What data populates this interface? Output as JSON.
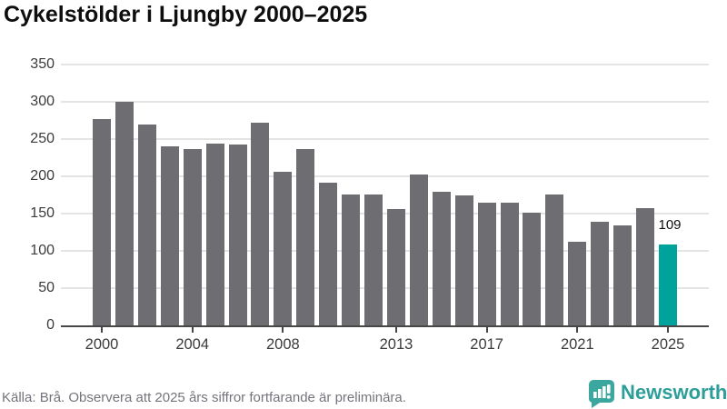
{
  "title": "Cykelstölder i Ljungby 2000–2025",
  "footer": {
    "source_note": "Källa: Brå. Observera att 2025 års siffror fortfarande är preliminära.",
    "brand": "Newsworthy"
  },
  "colors": {
    "bar": "#6d6d72",
    "highlight": "#00a39b",
    "gridline": "#e4e4e4",
    "axis": "#474747",
    "brand_teal": "#3ba79f"
  },
  "chart_data": {
    "type": "bar",
    "title": "Cykelstölder i Ljungby 2000–2025",
    "categories": [
      2000,
      2001,
      2002,
      2003,
      2004,
      2005,
      2006,
      2007,
      2008,
      2009,
      2010,
      2011,
      2012,
      2013,
      2014,
      2015,
      2016,
      2017,
      2018,
      2019,
      2020,
      2021,
      2022,
      2023,
      2024,
      2025
    ],
    "values": [
      277,
      300,
      270,
      240,
      237,
      244,
      243,
      272,
      206,
      236,
      191,
      176,
      176,
      156,
      202,
      179,
      174,
      165,
      165,
      151,
      176,
      112,
      139,
      134,
      157,
      109
    ],
    "highlight_index": 25,
    "highlight_label": "109",
    "xlabel": "",
    "ylabel": "",
    "ylim": [
      0,
      350
    ],
    "y_ticks": [
      0,
      50,
      100,
      150,
      200,
      250,
      300,
      350
    ],
    "x_tick_years": [
      2000,
      2004,
      2008,
      2013,
      2017,
      2021,
      2025
    ],
    "grid": true,
    "legend": "none"
  }
}
